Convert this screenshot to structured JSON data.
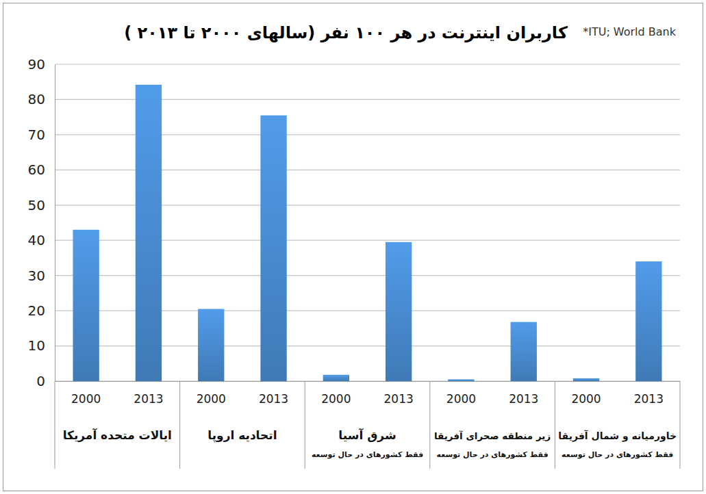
{
  "chart_data": {
    "type": "bar",
    "title": "کاربران اینترنت در هر ۱۰۰ نفر (سالهای ۲۰۰۰ تا ۲۰۱۳ )",
    "source": "*ITU; World Bank",
    "categories": [
      "2000",
      "2013",
      "2000",
      "2013",
      "2000",
      "2013",
      "2000",
      "2013",
      "2000",
      "2013"
    ],
    "values": [
      43,
      84.2,
      20.5,
      75.5,
      1.8,
      39.5,
      0.5,
      16.8,
      0.8,
      34
    ],
    "groups": [
      {
        "label": "ایالات متحده آمریکا"
      },
      {
        "label": "اتحادیه اروپا"
      },
      {
        "label": "شرق آسیا",
        "note": "فقط کشورهای در حال توسعه"
      },
      {
        "label": "زیر منطقه صحرای آفریقا",
        "note": "فقط کشورهای در حال توسعه"
      },
      {
        "label": "خاورمیانه و شمال آفریقا",
        "note": "فقط کشورهای در حال توسعه"
      }
    ],
    "color": "#4a8fd6",
    "ylim": [
      0,
      90
    ],
    "yticks": [
      0,
      10,
      20,
      30,
      40,
      50,
      60,
      70,
      80,
      90
    ],
    "grid": true
  }
}
